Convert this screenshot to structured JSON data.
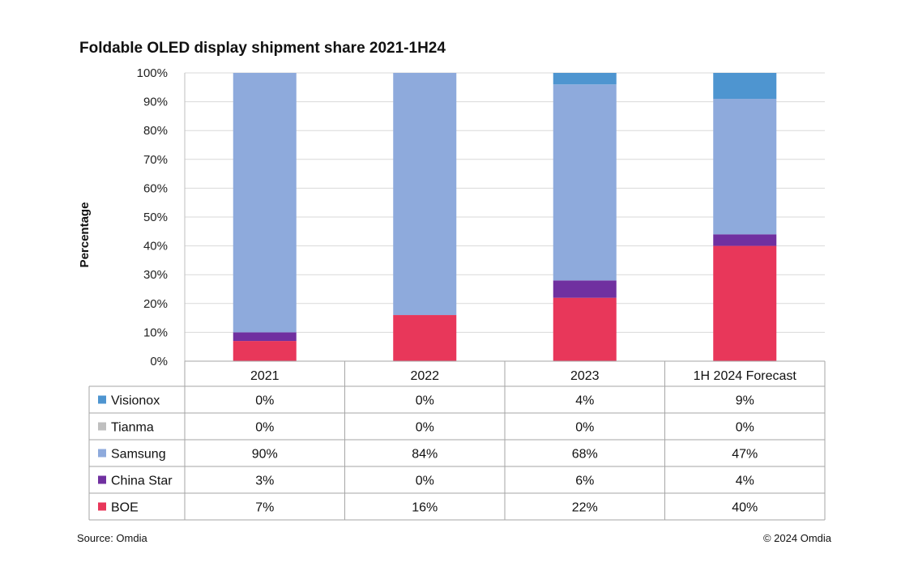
{
  "chart_data": {
    "type": "bar",
    "stacked": true,
    "title": "Foldable OLED display shipment share 2021-1H24",
    "ylabel": "Percentage",
    "xlabel": "",
    "ylim": [
      0,
      100
    ],
    "y_ticks": [
      "0%",
      "10%",
      "20%",
      "30%",
      "40%",
      "50%",
      "60%",
      "70%",
      "80%",
      "90%",
      "100%"
    ],
    "grid": true,
    "legend_placement": "data-table-left",
    "categories": [
      "2021",
      "2022",
      "2023",
      "1H 2024 Forecast"
    ],
    "series": [
      {
        "name": "Visionox",
        "color": "#4e95d0",
        "values": [
          0,
          0,
          4,
          9
        ],
        "labels": [
          "0%",
          "0%",
          "4%",
          "9%"
        ]
      },
      {
        "name": "Tianma",
        "color": "#bfbfbf",
        "values": [
          0,
          0,
          0,
          0
        ],
        "labels": [
          "0%",
          "0%",
          "0%",
          "0%"
        ]
      },
      {
        "name": "Samsung",
        "color": "#8eaadc",
        "values": [
          90,
          84,
          68,
          47
        ],
        "labels": [
          "90%",
          "84%",
          "68%",
          "47%"
        ]
      },
      {
        "name": "China Star",
        "color": "#7030a0",
        "values": [
          3,
          0,
          6,
          4
        ],
        "labels": [
          "3%",
          "0%",
          "6%",
          "4%"
        ]
      },
      {
        "name": "BOE",
        "color": "#e8375a",
        "values": [
          7,
          16,
          22,
          40
        ],
        "labels": [
          "7%",
          "16%",
          "22%",
          "40%"
        ]
      }
    ]
  },
  "footer": {
    "source": "Source: Omdia",
    "copyright": "© 2024 Omdia"
  }
}
